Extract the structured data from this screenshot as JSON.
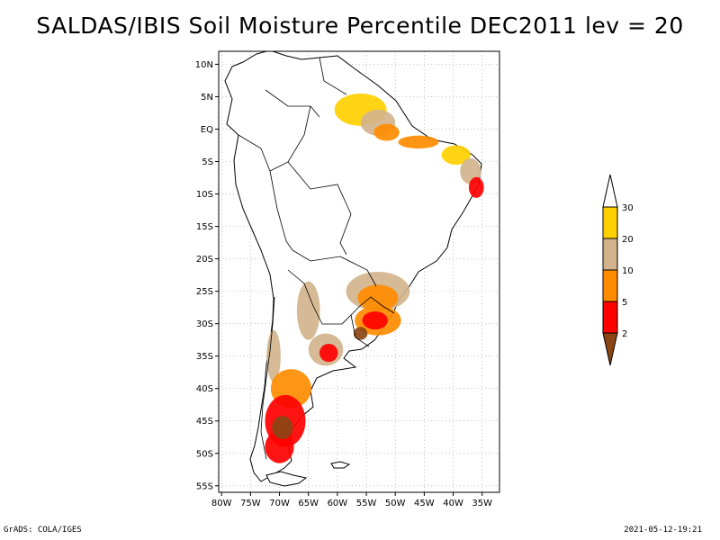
{
  "title": "SALDAS/IBIS Soil Moisture Percentile DEC2011 lev = 20",
  "footer": {
    "left": "GrADS: COLA/IGES",
    "right": "2021-05-12-19:21"
  },
  "map": {
    "lon_range": [
      -80.5,
      -32
    ],
    "lat_range": [
      -56,
      12
    ],
    "lat_ticks": [
      {
        "value": 10,
        "label": "10N"
      },
      {
        "value": 5,
        "label": "5N"
      },
      {
        "value": 0,
        "label": "EQ"
      },
      {
        "value": -5,
        "label": "5S"
      },
      {
        "value": -10,
        "label": "10S"
      },
      {
        "value": -15,
        "label": "15S"
      },
      {
        "value": -20,
        "label": "20S"
      },
      {
        "value": -25,
        "label": "25S"
      },
      {
        "value": -30,
        "label": "30S"
      },
      {
        "value": -35,
        "label": "35S"
      },
      {
        "value": -40,
        "label": "40S"
      },
      {
        "value": -45,
        "label": "45S"
      },
      {
        "value": -50,
        "label": "50S"
      },
      {
        "value": -55,
        "label": "55S"
      }
    ],
    "lon_ticks": [
      {
        "value": -80,
        "label": "80W"
      },
      {
        "value": -75,
        "label": "75W"
      },
      {
        "value": -70,
        "label": "70W"
      },
      {
        "value": -65,
        "label": "65W"
      },
      {
        "value": -60,
        "label": "60W"
      },
      {
        "value": -55,
        "label": "55W"
      },
      {
        "value": -50,
        "label": "50W"
      },
      {
        "value": -45,
        "label": "45W"
      },
      {
        "value": -40,
        "label": "40W"
      },
      {
        "value": -35,
        "label": "35W"
      }
    ]
  },
  "legend": {
    "bins": [
      {
        "label": "30",
        "color": "#ffffff"
      },
      {
        "label": "20",
        "color": "#ffd000"
      },
      {
        "label": "10",
        "color": "#d2b48c"
      },
      {
        "label": "5",
        "color": "#ff8c00"
      },
      {
        "label": "2",
        "color": "#ff0000"
      },
      {
        "label": "",
        "color": "#8b4513"
      }
    ]
  },
  "colors": {
    "gold": "#ffd000",
    "tan": "#d2b48c",
    "orange": "#ff8c00",
    "red": "#ff0000",
    "brown": "#8b4513"
  },
  "anomaly_regions": [
    {
      "name": "guianas-north-brazil",
      "lon": -56,
      "lat": 3,
      "rx": 4.5,
      "ry": 2.5,
      "category": "gold"
    },
    {
      "name": "para-coast",
      "lon": -53,
      "lat": 1,
      "rx": 3,
      "ry": 2,
      "category": "tan"
    },
    {
      "name": "para-dry-core",
      "lon": -51.5,
      "lat": -0.5,
      "rx": 2.2,
      "ry": 1.3,
      "category": "orange"
    },
    {
      "name": "maranhao-coast",
      "lon": -46,
      "lat": -2,
      "rx": 3.5,
      "ry": 1.0,
      "category": "orange"
    },
    {
      "name": "ceara-coast",
      "lon": -39.5,
      "lat": -4,
      "rx": 2.5,
      "ry": 1.5,
      "category": "gold"
    },
    {
      "name": "rio-grande-do-norte",
      "lon": -37,
      "lat": -6.5,
      "rx": 1.8,
      "ry": 2.0,
      "category": "tan"
    },
    {
      "name": "pernambuco-dry",
      "lon": -36,
      "lat": -9,
      "rx": 1.3,
      "ry": 1.6,
      "category": "red"
    },
    {
      "name": "parana-basin",
      "lon": -53,
      "lat": -25,
      "rx": 5.5,
      "ry": 3.0,
      "category": "tan"
    },
    {
      "name": "parana-basin-core",
      "lon": -53,
      "lat": -26,
      "rx": 3.5,
      "ry": 2.0,
      "category": "orange"
    },
    {
      "name": "rio-grande-do-sul",
      "lon": -53,
      "lat": -29.5,
      "rx": 4.0,
      "ry": 2.3,
      "category": "orange"
    },
    {
      "name": "rio-grande-do-sul-core",
      "lon": -53.5,
      "lat": -29.5,
      "rx": 2.2,
      "ry": 1.4,
      "category": "red"
    },
    {
      "name": "uruguay-dry",
      "lon": -56,
      "lat": -31.5,
      "rx": 1.2,
      "ry": 1.0,
      "category": "brown"
    },
    {
      "name": "northwest-argentina",
      "lon": -65,
      "lat": -28,
      "rx": 2.0,
      "ry": 4.5,
      "category": "tan"
    },
    {
      "name": "pampas",
      "lon": -62,
      "lat": -34,
      "rx": 3.0,
      "ry": 2.5,
      "category": "tan"
    },
    {
      "name": "pampas-core",
      "lon": -61.5,
      "lat": -34.5,
      "rx": 1.6,
      "ry": 1.4,
      "category": "red"
    },
    {
      "name": "central-chile",
      "lon": -71,
      "lat": -35,
      "rx": 1.2,
      "ry": 4.0,
      "category": "tan"
    },
    {
      "name": "northern-patagonia",
      "lon": -68,
      "lat": -40,
      "rx": 3.5,
      "ry": 3.0,
      "category": "orange"
    },
    {
      "name": "patagonia",
      "lon": -69,
      "lat": -45,
      "rx": 3.5,
      "ry": 4.0,
      "category": "red"
    },
    {
      "name": "southern-patagonia",
      "lon": -70,
      "lat": -49,
      "rx": 2.5,
      "ry": 2.5,
      "category": "red"
    },
    {
      "name": "patagonia-dry-core",
      "lon": -69.5,
      "lat": -46,
      "rx": 1.8,
      "ry": 1.8,
      "category": "brown"
    }
  ]
}
